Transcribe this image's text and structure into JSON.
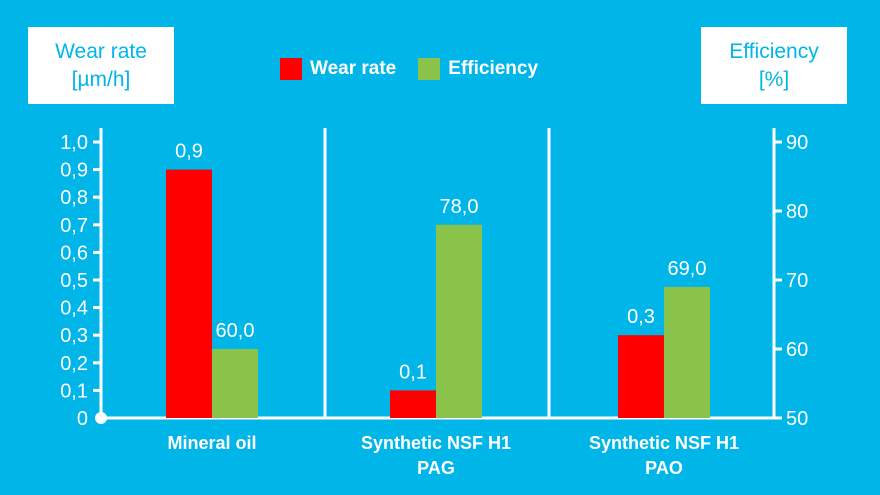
{
  "colors": {
    "background": "#00b5e8",
    "wear_rate": "#ff0000",
    "efficiency": "#8bc34a",
    "axis": "#ffffff"
  },
  "axis_titles": {
    "left_line1": "Wear rate",
    "left_line2": "[µm/h]",
    "right_line1": "Efficiency",
    "right_line2": "[%]"
  },
  "legend": {
    "wear_rate": "Wear rate",
    "efficiency": "Efficiency"
  },
  "chart_data": {
    "type": "bar",
    "categories": [
      [
        "Mineral oil"
      ],
      [
        "Synthetic NSF H1",
        "PAG"
      ],
      [
        "Synthetic NSF H1",
        "PAO"
      ]
    ],
    "series": [
      {
        "name": "Wear rate",
        "axis": "left",
        "values": [
          0.9,
          0.1,
          0.3
        ],
        "labels": [
          "0,9",
          "0,1",
          "0,3"
        ]
      },
      {
        "name": "Efficiency",
        "axis": "right",
        "values": [
          60.0,
          78.0,
          69.0
        ],
        "labels": [
          "60,0",
          "78,0",
          "69,0"
        ]
      }
    ],
    "y_left": {
      "ylim": [
        0,
        1.0
      ],
      "ticks": [
        0,
        0.1,
        0.2,
        0.3,
        0.4,
        0.5,
        0.6,
        0.7,
        0.8,
        0.9,
        1.0
      ],
      "tick_labels": [
        "0",
        "0,1",
        "0,2",
        "0,3",
        "0,4",
        "0,5",
        "0,6",
        "0,7",
        "0,8",
        "0,9",
        "1,0"
      ]
    },
    "y_right": {
      "ylim": [
        50,
        90
      ],
      "ticks": [
        50,
        60,
        70,
        80,
        90
      ],
      "tick_labels": [
        "50",
        "60",
        "70",
        "80",
        "90"
      ]
    },
    "grid": false,
    "legend_position": "top-center"
  }
}
